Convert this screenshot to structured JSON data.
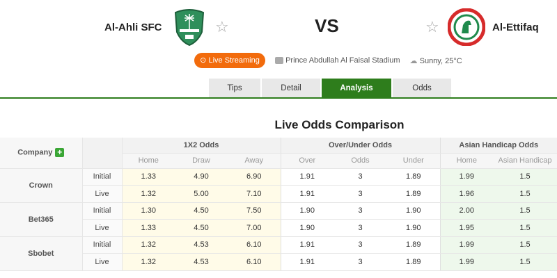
{
  "match": {
    "home_team": "Al-Ahli SFC",
    "away_team": "Al-Ettifaq",
    "vs": "VS",
    "live_streaming": "Live Streaming",
    "stadium": "Prince Abdullah Al Faisal Stadium",
    "weather": "Sunny, 25°C",
    "colors": {
      "brand_green": "#2e7d1c",
      "live_orange": "#f26b0c"
    }
  },
  "tabs": [
    {
      "label": "Tips",
      "active": false
    },
    {
      "label": "Detail",
      "active": false
    },
    {
      "label": "Analysis",
      "active": true
    },
    {
      "label": "Odds",
      "active": false
    }
  ],
  "section_title": "Live Odds Comparison",
  "table": {
    "company_header": "Company",
    "groups": [
      "1X2 Odds",
      "Over/Under Odds",
      "Asian Handicap Odds"
    ],
    "subheaders": [
      "Home",
      "Draw",
      "Away",
      "Over",
      "Odds",
      "Under",
      "Home",
      "Asian Handicap"
    ],
    "companies": [
      {
        "name": "Crown",
        "rows": [
          {
            "type": "Initial",
            "values": [
              "1.33",
              "4.90",
              "6.90",
              "1.91",
              "3",
              "1.89",
              "1.99",
              "1.5"
            ]
          },
          {
            "type": "Live",
            "values": [
              "1.32",
              "5.00",
              "7.10",
              "1.91",
              "3",
              "1.89",
              "1.96",
              "1.5"
            ]
          }
        ]
      },
      {
        "name": "Bet365",
        "rows": [
          {
            "type": "Initial",
            "values": [
              "1.30",
              "4.50",
              "7.50",
              "1.90",
              "3",
              "1.90",
              "2.00",
              "1.5"
            ]
          },
          {
            "type": "Live",
            "values": [
              "1.33",
              "4.50",
              "7.00",
              "1.90",
              "3",
              "1.90",
              "1.95",
              "1.5"
            ]
          }
        ]
      },
      {
        "name": "Sbobet",
        "rows": [
          {
            "type": "Initial",
            "values": [
              "1.32",
              "4.53",
              "6.10",
              "1.91",
              "3",
              "1.89",
              "1.99",
              "1.5"
            ]
          },
          {
            "type": "Live",
            "values": [
              "1.32",
              "4.53",
              "6.10",
              "1.91",
              "3",
              "1.89",
              "1.99",
              "1.5"
            ]
          }
        ]
      }
    ]
  }
}
